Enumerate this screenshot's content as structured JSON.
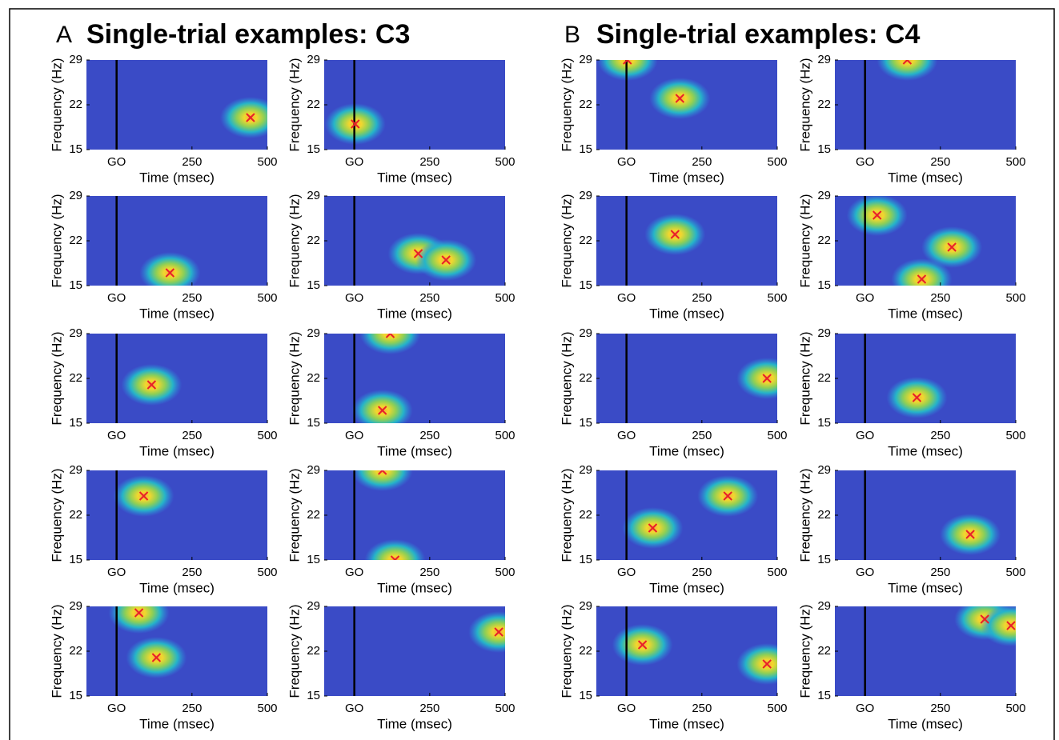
{
  "panels": [
    {
      "letter": "A",
      "title": "Single-trial examples: C3"
    },
    {
      "letter": "B",
      "title": "Single-trial examples: C4"
    }
  ],
  "chart_data": [
    {
      "type": "heatmap",
      "xlabel": "Time (msec)",
      "ylabel": "Frequency (Hz)",
      "xlim": [
        -100,
        500
      ],
      "ylim": [
        15,
        29
      ],
      "xticks": [
        {
          "value": 0,
          "label": "GO"
        },
        250,
        500
      ],
      "yticks": [
        15,
        22,
        29
      ],
      "x": [
        444
      ],
      "y": [
        20
      ],
      "marker_color": "#e8202a"
    },
    {
      "type": "heatmap",
      "xlabel": "Time (msec)",
      "ylabel": "Frequency (Hz)",
      "xlim": [
        -100,
        500
      ],
      "ylim": [
        15,
        29
      ],
      "xticks": [
        {
          "value": 0,
          "label": "GO"
        },
        250,
        500
      ],
      "yticks": [
        15,
        22,
        29
      ],
      "x": [
        3
      ],
      "y": [
        19
      ],
      "marker_color": "#e8202a"
    },
    {
      "type": "heatmap",
      "xlabel": "Time (msec)",
      "ylabel": "Frequency (Hz)",
      "xlim": [
        -100,
        500
      ],
      "ylim": [
        15,
        29
      ],
      "xticks": [
        {
          "value": 0,
          "label": "GO"
        },
        250,
        500
      ],
      "yticks": [
        15,
        22,
        29
      ],
      "x": [
        177
      ],
      "y": [
        17
      ],
      "marker_color": "#e8202a"
    },
    {
      "type": "heatmap",
      "xlabel": "Time (msec)",
      "ylabel": "Frequency (Hz)",
      "xlim": [
        -100,
        500
      ],
      "ylim": [
        15,
        29
      ],
      "xticks": [
        {
          "value": 0,
          "label": "GO"
        },
        250,
        500
      ],
      "yticks": [
        15,
        22,
        29
      ],
      "x": [
        212,
        304
      ],
      "y": [
        20,
        19
      ],
      "marker_color": "#e8202a"
    },
    {
      "type": "heatmap",
      "xlabel": "Time (msec)",
      "ylabel": "Frequency (Hz)",
      "xlim": [
        -100,
        500
      ],
      "ylim": [
        15,
        29
      ],
      "xticks": [
        {
          "value": 0,
          "label": "GO"
        },
        250,
        500
      ],
      "yticks": [
        15,
        22,
        29
      ],
      "x": [
        116
      ],
      "y": [
        21
      ],
      "marker_color": "#e8202a"
    },
    {
      "type": "heatmap",
      "xlabel": "Time (msec)",
      "ylabel": "Frequency (Hz)",
      "xlim": [
        -100,
        500
      ],
      "ylim": [
        15,
        29
      ],
      "xticks": [
        {
          "value": 0,
          "label": "GO"
        },
        250,
        500
      ],
      "yticks": [
        15,
        22,
        29
      ],
      "x": [
        119,
        93
      ],
      "y": [
        29,
        17
      ],
      "marker_color": "#e8202a"
    },
    {
      "type": "heatmap",
      "xlabel": "Time (msec)",
      "ylabel": "Frequency (Hz)",
      "xlim": [
        -100,
        500
      ],
      "ylim": [
        15,
        29
      ],
      "xticks": [
        {
          "value": 0,
          "label": "GO"
        },
        250,
        500
      ],
      "yticks": [
        15,
        22,
        29
      ],
      "x": [
        90
      ],
      "y": [
        25
      ],
      "marker_color": "#e8202a"
    },
    {
      "type": "heatmap",
      "xlabel": "Time (msec)",
      "ylabel": "Frequency (Hz)",
      "xlim": [
        -100,
        500
      ],
      "ylim": [
        15,
        29
      ],
      "xticks": [
        {
          "value": 0,
          "label": "GO"
        },
        250,
        500
      ],
      "yticks": [
        15,
        22,
        29
      ],
      "x": [
        93,
        135
      ],
      "y": [
        29,
        15
      ],
      "marker_color": "#e8202a"
    },
    {
      "type": "heatmap",
      "xlabel": "Time (msec)",
      "ylabel": "Frequency (Hz)",
      "xlim": [
        -100,
        500
      ],
      "ylim": [
        15,
        29
      ],
      "xticks": [
        {
          "value": 0,
          "label": "GO"
        },
        250,
        500
      ],
      "yticks": [
        15,
        22,
        29
      ],
      "x": [
        74,
        132
      ],
      "y": [
        28,
        21
      ],
      "marker_color": "#e8202a"
    },
    {
      "type": "heatmap",
      "xlabel": "Time (msec)",
      "ylabel": "Frequency (Hz)",
      "xlim": [
        -100,
        500
      ],
      "ylim": [
        15,
        29
      ],
      "xticks": [
        {
          "value": 0,
          "label": "GO"
        },
        250,
        500
      ],
      "yticks": [
        15,
        22,
        29
      ],
      "x": [
        479
      ],
      "y": [
        25
      ],
      "marker_color": "#e8202a"
    },
    {
      "type": "heatmap",
      "xlabel": "Time (msec)",
      "ylabel": "Frequency (Hz)",
      "xlim": [
        -100,
        500
      ],
      "ylim": [
        15,
        29
      ],
      "xticks": [
        {
          "value": 0,
          "label": "GO"
        },
        250,
        500
      ],
      "yticks": [
        15,
        22,
        29
      ],
      "x": [
        3,
        177
      ],
      "y": [
        29,
        23
      ],
      "marker_color": "#e8202a"
    },
    {
      "type": "heatmap",
      "xlabel": "Time (msec)",
      "ylabel": "Frequency (Hz)",
      "xlim": [
        -100,
        500
      ],
      "ylim": [
        15,
        29
      ],
      "xticks": [
        {
          "value": 0,
          "label": "GO"
        },
        250,
        500
      ],
      "yticks": [
        15,
        22,
        29
      ],
      "x": [
        140
      ],
      "y": [
        29
      ],
      "marker_color": "#e8202a"
    },
    {
      "type": "heatmap",
      "xlabel": "Time (msec)",
      "ylabel": "Frequency (Hz)",
      "xlim": [
        -100,
        500
      ],
      "ylim": [
        15,
        29
      ],
      "xticks": [
        {
          "value": 0,
          "label": "GO"
        },
        250,
        500
      ],
      "yticks": [
        15,
        22,
        29
      ],
      "x": [
        161
      ],
      "y": [
        23
      ],
      "marker_color": "#e8202a"
    },
    {
      "type": "heatmap",
      "xlabel": "Time (msec)",
      "ylabel": "Frequency (Hz)",
      "xlim": [
        -100,
        500
      ],
      "ylim": [
        15,
        29
      ],
      "xticks": [
        {
          "value": 0,
          "label": "GO"
        },
        250,
        500
      ],
      "yticks": [
        15,
        22,
        29
      ],
      "x": [
        40,
        188,
        288
      ],
      "y": [
        26,
        16,
        21
      ],
      "marker_color": "#e8202a"
    },
    {
      "type": "heatmap",
      "xlabel": "Time (msec)",
      "ylabel": "Frequency (Hz)",
      "xlim": [
        -100,
        500
      ],
      "ylim": [
        15,
        29
      ],
      "xticks": [
        {
          "value": 0,
          "label": "GO"
        },
        250,
        500
      ],
      "yticks": [
        15,
        22,
        29
      ],
      "x": [
        466
      ],
      "y": [
        22
      ],
      "marker_color": "#e8202a"
    },
    {
      "type": "heatmap",
      "xlabel": "Time (msec)",
      "ylabel": "Frequency (Hz)",
      "xlim": [
        -100,
        500
      ],
      "ylim": [
        15,
        29
      ],
      "xticks": [
        {
          "value": 0,
          "label": "GO"
        },
        250,
        500
      ],
      "yticks": [
        15,
        22,
        29
      ],
      "x": [
        172
      ],
      "y": [
        19
      ],
      "marker_color": "#e8202a"
    },
    {
      "type": "heatmap",
      "xlabel": "Time (msec)",
      "ylabel": "Frequency (Hz)",
      "xlim": [
        -100,
        500
      ],
      "ylim": [
        15,
        29
      ],
      "xticks": [
        {
          "value": 0,
          "label": "GO"
        },
        250,
        500
      ],
      "yticks": [
        15,
        22,
        29
      ],
      "x": [
        87,
        336
      ],
      "y": [
        20,
        25
      ],
      "marker_color": "#e8202a"
    },
    {
      "type": "heatmap",
      "xlabel": "Time (msec)",
      "ylabel": "Frequency (Hz)",
      "xlim": [
        -100,
        500
      ],
      "ylim": [
        15,
        29
      ],
      "xticks": [
        {
          "value": 0,
          "label": "GO"
        },
        250,
        500
      ],
      "yticks": [
        15,
        22,
        29
      ],
      "x": [
        349
      ],
      "y": [
        19
      ],
      "marker_color": "#e8202a"
    },
    {
      "type": "heatmap",
      "xlabel": "Time (msec)",
      "ylabel": "Frequency (Hz)",
      "xlim": [
        -100,
        500
      ],
      "ylim": [
        15,
        29
      ],
      "xticks": [
        {
          "value": 0,
          "label": "GO"
        },
        250,
        500
      ],
      "yticks": [
        15,
        22,
        29
      ],
      "x": [
        53,
        466
      ],
      "y": [
        23,
        20
      ],
      "marker_color": "#e8202a"
    },
    {
      "type": "heatmap",
      "xlabel": "Time (msec)",
      "ylabel": "Frequency (Hz)",
      "xlim": [
        -100,
        500
      ],
      "ylim": [
        15,
        29
      ],
      "xticks": [
        {
          "value": 0,
          "label": "GO"
        },
        250,
        500
      ],
      "yticks": [
        15,
        22,
        29
      ],
      "x": [
        397,
        484
      ],
      "y": [
        27,
        26
      ],
      "marker_color": "#e8202a"
    }
  ]
}
